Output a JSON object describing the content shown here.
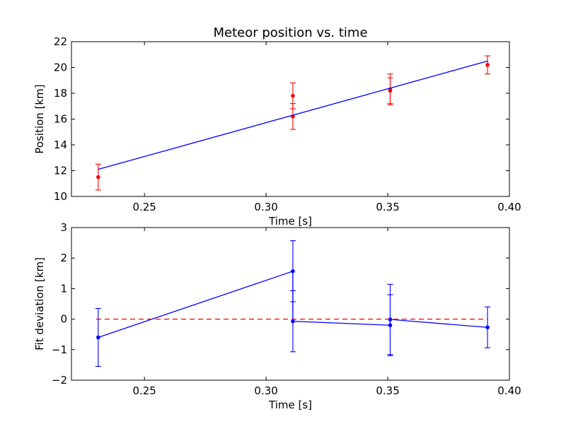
{
  "chart_data": [
    {
      "type": "scatter",
      "title": "Meteor position vs. time",
      "xlabel": "Time [s]",
      "ylabel": "Position [km]",
      "xlim": [
        0.22,
        0.4
      ],
      "ylim": [
        10,
        22
      ],
      "xticks": [
        0.25,
        0.3,
        0.35,
        0.4
      ],
      "xtick_labels": [
        "0.25",
        "0.30",
        "0.35",
        "0.40"
      ],
      "yticks": [
        10,
        12,
        14,
        16,
        18,
        20,
        22
      ],
      "ytick_labels": [
        "10",
        "12",
        "14",
        "16",
        "18",
        "20",
        "22"
      ],
      "grid": false,
      "series": [
        {
          "kind": "errorbar-points",
          "color": "#ff0000",
          "x": [
            0.231,
            0.311,
            0.311,
            0.351,
            0.351,
            0.391
          ],
          "y": [
            11.5,
            16.2,
            17.8,
            18.2,
            18.3,
            20.2
          ],
          "yerr": [
            1.0,
            1.0,
            1.0,
            1.0,
            1.2,
            0.7
          ]
        },
        {
          "kind": "fit-line",
          "color": "#0000ff",
          "x": [
            0.231,
            0.391
          ],
          "y": [
            12.1,
            20.5
          ]
        }
      ]
    },
    {
      "type": "line",
      "title": "",
      "xlabel": "Time [s]",
      "ylabel": "Fit deviation [km]",
      "xlim": [
        0.22,
        0.4
      ],
      "ylim": [
        -2,
        3
      ],
      "xticks": [
        0.25,
        0.3,
        0.35,
        0.4
      ],
      "xtick_labels": [
        "0.25",
        "0.30",
        "0.35",
        "0.40"
      ],
      "yticks": [
        -2,
        -1,
        0,
        1,
        2,
        3
      ],
      "ytick_labels": [
        "−2",
        "−1",
        "0",
        "1",
        "2",
        "3"
      ],
      "grid": false,
      "series": [
        {
          "kind": "errorbar-line",
          "color": "#0000ff",
          "x": [
            0.231,
            0.311,
            0.311,
            0.351,
            0.351,
            0.391
          ],
          "y": [
            -0.6,
            1.57,
            -0.07,
            -0.2,
            -0.01,
            -0.27
          ],
          "yerr": [
            0.95,
            1.0,
            1.0,
            1.0,
            1.15,
            0.67
          ]
        },
        {
          "kind": "reference-line",
          "style": "dashed",
          "color": "#ff0000",
          "y": 0
        }
      ]
    }
  ]
}
